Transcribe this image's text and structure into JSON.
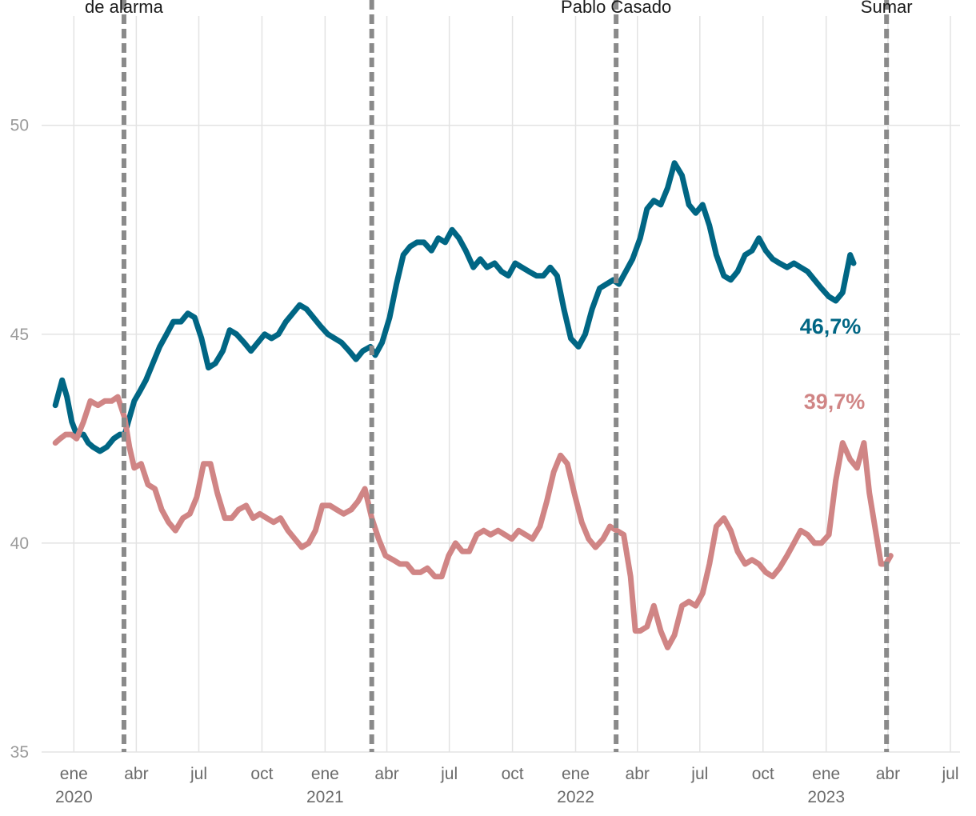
{
  "chart_data": {
    "type": "line",
    "title": "",
    "xlabel": "",
    "ylabel": "",
    "ylim": [
      35,
      53
    ],
    "yticks": [
      35,
      40,
      45,
      50
    ],
    "xlim": [
      "2019-11-15",
      "2023-07-15"
    ],
    "grid": true,
    "xticks": [
      {
        "date": "2020-01-01",
        "label": "ene",
        "year": "2020"
      },
      {
        "date": "2020-04-01",
        "label": "abr",
        "year": ""
      },
      {
        "date": "2020-07-01",
        "label": "jul",
        "year": ""
      },
      {
        "date": "2020-10-01",
        "label": "oct",
        "year": ""
      },
      {
        "date": "2021-01-01",
        "label": "ene",
        "year": "2021"
      },
      {
        "date": "2021-04-01",
        "label": "abr",
        "year": ""
      },
      {
        "date": "2021-07-01",
        "label": "jul",
        "year": ""
      },
      {
        "date": "2021-10-01",
        "label": "oct",
        "year": ""
      },
      {
        "date": "2022-01-01",
        "label": "ene",
        "year": "2022"
      },
      {
        "date": "2022-04-01",
        "label": "abr",
        "year": ""
      },
      {
        "date": "2022-07-01",
        "label": "jul",
        "year": ""
      },
      {
        "date": "2022-10-01",
        "label": "oct",
        "year": ""
      },
      {
        "date": "2023-01-01",
        "label": "ene",
        "year": "2023"
      },
      {
        "date": "2023-04-01",
        "label": "abr",
        "year": ""
      },
      {
        "date": "2023-07-01",
        "label": "jul",
        "year": ""
      }
    ],
    "events": [
      {
        "date": "2020-03-14",
        "label": "de alarma"
      },
      {
        "date": "2021-03-10",
        "label": ""
      },
      {
        "date": "2022-03-01",
        "label": "Pablo Casado"
      },
      {
        "date": "2023-03-30",
        "label": "Sumar"
      }
    ],
    "series": [
      {
        "color": "#006684",
        "end_label": "46,7%",
        "points": [
          [
            "2019-12-05",
            43.3
          ],
          [
            "2019-12-10",
            43.6
          ],
          [
            "2019-12-15",
            43.9
          ],
          [
            "2019-12-22",
            43.5
          ],
          [
            "2019-12-29",
            42.9
          ],
          [
            "2020-01-05",
            42.6
          ],
          [
            "2020-01-15",
            42.6
          ],
          [
            "2020-01-22",
            42.4
          ],
          [
            "2020-01-29",
            42.3
          ],
          [
            "2020-02-08",
            42.2
          ],
          [
            "2020-02-18",
            42.3
          ],
          [
            "2020-02-28",
            42.5
          ],
          [
            "2020-03-08",
            42.6
          ],
          [
            "2020-03-15",
            42.6
          ],
          [
            "2020-03-22",
            43.0
          ],
          [
            "2020-03-29",
            43.4
          ],
          [
            "2020-04-05",
            43.6
          ],
          [
            "2020-04-15",
            43.9
          ],
          [
            "2020-04-25",
            44.3
          ],
          [
            "2020-05-05",
            44.7
          ],
          [
            "2020-05-15",
            45.0
          ],
          [
            "2020-05-25",
            45.3
          ],
          [
            "2020-06-05",
            45.3
          ],
          [
            "2020-06-15",
            45.5
          ],
          [
            "2020-06-25",
            45.4
          ],
          [
            "2020-07-05",
            44.9
          ],
          [
            "2020-07-15",
            44.2
          ],
          [
            "2020-07-25",
            44.3
          ],
          [
            "2020-08-05",
            44.6
          ],
          [
            "2020-08-15",
            45.1
          ],
          [
            "2020-08-25",
            45.0
          ],
          [
            "2020-09-05",
            44.8
          ],
          [
            "2020-09-15",
            44.6
          ],
          [
            "2020-09-25",
            44.8
          ],
          [
            "2020-10-05",
            45.0
          ],
          [
            "2020-10-15",
            44.9
          ],
          [
            "2020-10-25",
            45.0
          ],
          [
            "2020-11-05",
            45.3
          ],
          [
            "2020-11-15",
            45.5
          ],
          [
            "2020-11-25",
            45.7
          ],
          [
            "2020-12-05",
            45.6
          ],
          [
            "2020-12-15",
            45.4
          ],
          [
            "2020-12-25",
            45.2
          ],
          [
            "2021-01-05",
            45.0
          ],
          [
            "2021-01-15",
            44.9
          ],
          [
            "2021-01-25",
            44.8
          ],
          [
            "2021-02-05",
            44.6
          ],
          [
            "2021-02-15",
            44.4
          ],
          [
            "2021-02-25",
            44.6
          ],
          [
            "2021-03-08",
            44.7
          ],
          [
            "2021-03-15",
            44.5
          ],
          [
            "2021-03-25",
            44.8
          ],
          [
            "2021-04-05",
            45.4
          ],
          [
            "2021-04-15",
            46.2
          ],
          [
            "2021-04-25",
            46.9
          ],
          [
            "2021-05-05",
            47.1
          ],
          [
            "2021-05-15",
            47.2
          ],
          [
            "2021-05-25",
            47.2
          ],
          [
            "2021-06-05",
            47.0
          ],
          [
            "2021-06-15",
            47.3
          ],
          [
            "2021-06-25",
            47.2
          ],
          [
            "2021-07-05",
            47.5
          ],
          [
            "2021-07-15",
            47.3
          ],
          [
            "2021-07-25",
            47.0
          ],
          [
            "2021-08-05",
            46.6
          ],
          [
            "2021-08-15",
            46.8
          ],
          [
            "2021-08-25",
            46.6
          ],
          [
            "2021-09-05",
            46.7
          ],
          [
            "2021-09-15",
            46.5
          ],
          [
            "2021-09-25",
            46.4
          ],
          [
            "2021-10-05",
            46.7
          ],
          [
            "2021-10-15",
            46.6
          ],
          [
            "2021-10-25",
            46.5
          ],
          [
            "2021-11-05",
            46.4
          ],
          [
            "2021-11-15",
            46.4
          ],
          [
            "2021-11-25",
            46.6
          ],
          [
            "2021-12-05",
            46.4
          ],
          [
            "2021-12-15",
            45.6
          ],
          [
            "2021-12-25",
            44.9
          ],
          [
            "2022-01-05",
            44.7
          ],
          [
            "2022-01-15",
            45.0
          ],
          [
            "2022-01-25",
            45.6
          ],
          [
            "2022-02-05",
            46.1
          ],
          [
            "2022-02-15",
            46.2
          ],
          [
            "2022-02-25",
            46.3
          ],
          [
            "2022-03-05",
            46.2
          ],
          [
            "2022-03-15",
            46.5
          ],
          [
            "2022-03-25",
            46.8
          ],
          [
            "2022-04-05",
            47.3
          ],
          [
            "2022-04-15",
            48.0
          ],
          [
            "2022-04-25",
            48.2
          ],
          [
            "2022-05-05",
            48.1
          ],
          [
            "2022-05-15",
            48.5
          ],
          [
            "2022-05-25",
            49.1
          ],
          [
            "2022-06-05",
            48.8
          ],
          [
            "2022-06-15",
            48.1
          ],
          [
            "2022-06-25",
            47.9
          ],
          [
            "2022-07-05",
            48.1
          ],
          [
            "2022-07-15",
            47.6
          ],
          [
            "2022-07-25",
            46.9
          ],
          [
            "2022-08-05",
            46.4
          ],
          [
            "2022-08-15",
            46.3
          ],
          [
            "2022-08-25",
            46.5
          ],
          [
            "2022-09-05",
            46.9
          ],
          [
            "2022-09-15",
            47.0
          ],
          [
            "2022-09-25",
            47.3
          ],
          [
            "2022-10-05",
            47.0
          ],
          [
            "2022-10-15",
            46.8
          ],
          [
            "2022-10-25",
            46.7
          ],
          [
            "2022-11-05",
            46.6
          ],
          [
            "2022-11-15",
            46.7
          ],
          [
            "2022-11-25",
            46.6
          ],
          [
            "2022-12-05",
            46.5
          ],
          [
            "2022-12-15",
            46.3
          ],
          [
            "2022-12-25",
            46.1
          ],
          [
            "2023-01-05",
            45.9
          ],
          [
            "2023-01-15",
            45.8
          ],
          [
            "2023-01-25",
            46.0
          ],
          [
            "2023-02-05",
            46.9
          ],
          [
            "2023-02-10",
            46.7
          ]
        ]
      },
      {
        "color": "#d08585",
        "end_label": "39,7%",
        "points": [
          [
            "2019-12-05",
            42.4
          ],
          [
            "2019-12-12",
            42.5
          ],
          [
            "2019-12-20",
            42.6
          ],
          [
            "2019-12-28",
            42.6
          ],
          [
            "2020-01-05",
            42.5
          ],
          [
            "2020-01-15",
            42.9
          ],
          [
            "2020-01-25",
            43.4
          ],
          [
            "2020-02-05",
            43.3
          ],
          [
            "2020-02-15",
            43.4
          ],
          [
            "2020-02-25",
            43.4
          ],
          [
            "2020-03-05",
            43.5
          ],
          [
            "2020-03-15",
            43.0
          ],
          [
            "2020-03-22",
            42.3
          ],
          [
            "2020-03-29",
            41.8
          ],
          [
            "2020-04-08",
            41.9
          ],
          [
            "2020-04-18",
            41.4
          ],
          [
            "2020-04-28",
            41.3
          ],
          [
            "2020-05-08",
            40.8
          ],
          [
            "2020-05-18",
            40.5
          ],
          [
            "2020-05-28",
            40.3
          ],
          [
            "2020-06-08",
            40.6
          ],
          [
            "2020-06-18",
            40.7
          ],
          [
            "2020-06-28",
            41.1
          ],
          [
            "2020-07-08",
            41.9
          ],
          [
            "2020-07-18",
            41.9
          ],
          [
            "2020-07-28",
            41.2
          ],
          [
            "2020-08-08",
            40.6
          ],
          [
            "2020-08-18",
            40.6
          ],
          [
            "2020-08-28",
            40.8
          ],
          [
            "2020-09-08",
            40.9
          ],
          [
            "2020-09-18",
            40.6
          ],
          [
            "2020-09-28",
            40.7
          ],
          [
            "2020-10-08",
            40.6
          ],
          [
            "2020-10-18",
            40.5
          ],
          [
            "2020-10-28",
            40.6
          ],
          [
            "2020-11-08",
            40.3
          ],
          [
            "2020-11-18",
            40.1
          ],
          [
            "2020-11-28",
            39.9
          ],
          [
            "2020-12-08",
            40.0
          ],
          [
            "2020-12-18",
            40.3
          ],
          [
            "2020-12-28",
            40.9
          ],
          [
            "2021-01-08",
            40.9
          ],
          [
            "2021-01-18",
            40.8
          ],
          [
            "2021-01-28",
            40.7
          ],
          [
            "2021-02-08",
            40.8
          ],
          [
            "2021-02-18",
            41.0
          ],
          [
            "2021-02-28",
            41.3
          ],
          [
            "2021-03-10",
            40.6
          ],
          [
            "2021-03-20",
            40.1
          ],
          [
            "2021-03-30",
            39.7
          ],
          [
            "2021-04-10",
            39.6
          ],
          [
            "2021-04-20",
            39.5
          ],
          [
            "2021-04-30",
            39.5
          ],
          [
            "2021-05-10",
            39.3
          ],
          [
            "2021-05-20",
            39.3
          ],
          [
            "2021-05-30",
            39.4
          ],
          [
            "2021-06-10",
            39.2
          ],
          [
            "2021-06-20",
            39.2
          ],
          [
            "2021-06-30",
            39.7
          ],
          [
            "2021-07-10",
            40.0
          ],
          [
            "2021-07-20",
            39.8
          ],
          [
            "2021-07-30",
            39.8
          ],
          [
            "2021-08-10",
            40.2
          ],
          [
            "2021-08-20",
            40.3
          ],
          [
            "2021-08-30",
            40.2
          ],
          [
            "2021-09-10",
            40.3
          ],
          [
            "2021-09-20",
            40.2
          ],
          [
            "2021-09-30",
            40.1
          ],
          [
            "2021-10-10",
            40.3
          ],
          [
            "2021-10-20",
            40.2
          ],
          [
            "2021-10-30",
            40.1
          ],
          [
            "2021-11-10",
            40.4
          ],
          [
            "2021-11-20",
            41.0
          ],
          [
            "2021-11-30",
            41.7
          ],
          [
            "2021-12-10",
            42.1
          ],
          [
            "2021-12-20",
            41.9
          ],
          [
            "2021-12-30",
            41.2
          ],
          [
            "2022-01-10",
            40.5
          ],
          [
            "2022-01-20",
            40.1
          ],
          [
            "2022-01-30",
            39.9
          ],
          [
            "2022-02-10",
            40.1
          ],
          [
            "2022-02-20",
            40.4
          ],
          [
            "2022-03-02",
            40.3
          ],
          [
            "2022-03-12",
            40.2
          ],
          [
            "2022-03-22",
            39.2
          ],
          [
            "2022-03-29",
            37.9
          ],
          [
            "2022-04-05",
            37.9
          ],
          [
            "2022-04-15",
            38.0
          ],
          [
            "2022-04-25",
            38.5
          ],
          [
            "2022-05-05",
            37.9
          ],
          [
            "2022-05-15",
            37.5
          ],
          [
            "2022-05-25",
            37.8
          ],
          [
            "2022-06-05",
            38.5
          ],
          [
            "2022-06-15",
            38.6
          ],
          [
            "2022-06-25",
            38.5
          ],
          [
            "2022-07-05",
            38.8
          ],
          [
            "2022-07-15",
            39.5
          ],
          [
            "2022-07-25",
            40.4
          ],
          [
            "2022-08-05",
            40.6
          ],
          [
            "2022-08-15",
            40.3
          ],
          [
            "2022-08-25",
            39.8
          ],
          [
            "2022-09-05",
            39.5
          ],
          [
            "2022-09-15",
            39.6
          ],
          [
            "2022-09-25",
            39.5
          ],
          [
            "2022-10-05",
            39.3
          ],
          [
            "2022-10-15",
            39.2
          ],
          [
            "2022-10-25",
            39.4
          ],
          [
            "2022-11-05",
            39.7
          ],
          [
            "2022-11-15",
            40.0
          ],
          [
            "2022-11-25",
            40.3
          ],
          [
            "2022-12-05",
            40.2
          ],
          [
            "2022-12-15",
            40.0
          ],
          [
            "2022-12-25",
            40.0
          ],
          [
            "2023-01-05",
            40.2
          ],
          [
            "2023-01-15",
            41.5
          ],
          [
            "2023-01-25",
            42.4
          ],
          [
            "2023-02-05",
            42.0
          ],
          [
            "2023-02-15",
            41.8
          ],
          [
            "2023-02-25",
            42.4
          ],
          [
            "2023-03-05",
            41.2
          ],
          [
            "2023-03-15",
            40.2
          ],
          [
            "2023-03-22",
            39.5
          ],
          [
            "2023-03-29",
            39.5
          ],
          [
            "2023-04-05",
            39.7
          ]
        ]
      }
    ]
  }
}
